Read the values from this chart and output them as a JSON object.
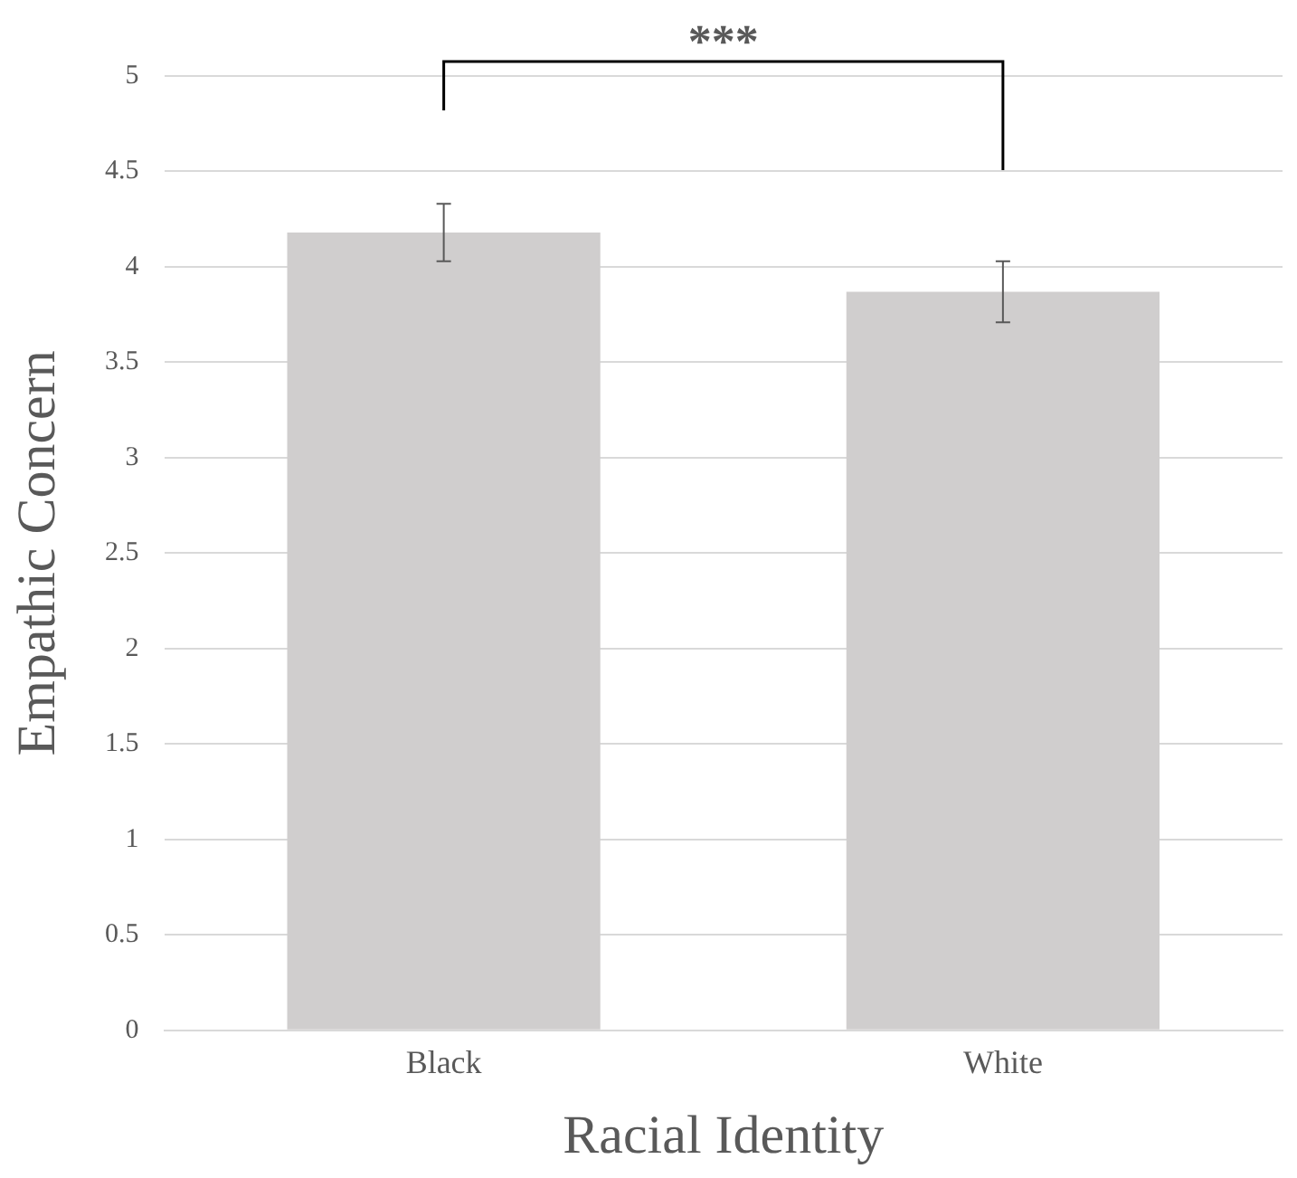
{
  "chart_data": {
    "type": "bar",
    "xlabel": "Racial Identity",
    "ylabel": "Empathic Concern",
    "categories": [
      "Black",
      "White"
    ],
    "values": [
      4.18,
      3.87
    ],
    "errors": [
      0.15,
      0.16
    ],
    "color": "#d0cece",
    "ylim": [
      0,
      5
    ],
    "yticks": [
      0,
      0.5,
      1,
      1.5,
      2,
      2.5,
      3,
      3.5,
      4,
      4.5,
      5
    ],
    "grid": "y",
    "legend": false,
    "annotations": [
      "***"
    ]
  }
}
